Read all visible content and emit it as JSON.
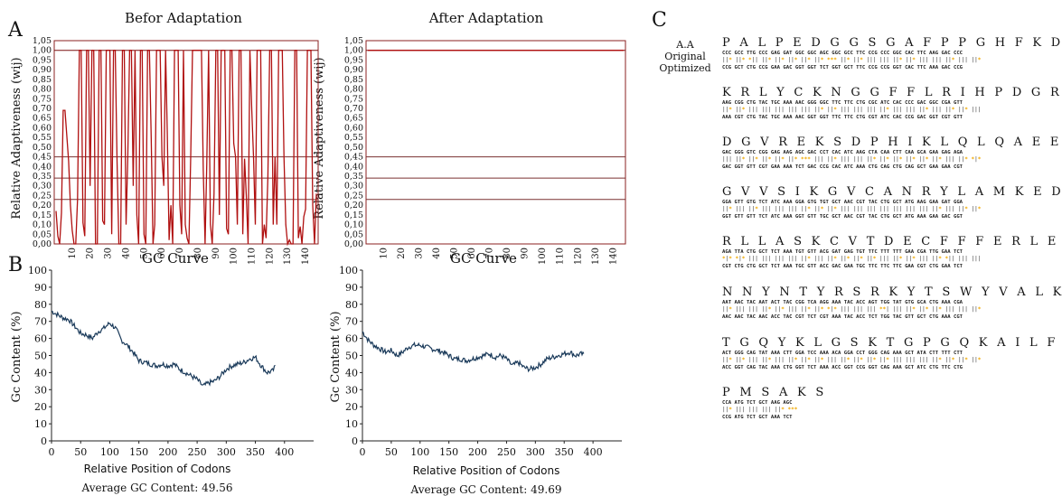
{
  "panels": {
    "A": {
      "letter": "A",
      "left_title": "Befor Adaptation",
      "right_title": "After Adaptation",
      "ylabel": "Relative Adaptiveness (wij)",
      "yticks": [
        "0,00",
        "0,05",
        "0,10",
        "0,15",
        "0,20",
        "0,25",
        "0,30",
        "0,35",
        "0,40",
        "0,45",
        "0,50",
        "0,55",
        "0,60",
        "0,65",
        "0,70",
        "0,75",
        "0,80",
        "0,85",
        "0,90",
        "0,95",
        "1,00",
        "1,05"
      ],
      "xticks": [
        "10",
        "20",
        "30",
        "40",
        "50",
        "60",
        "70",
        "80",
        "90",
        "100",
        "110",
        "120",
        "130",
        "140"
      ]
    },
    "B": {
      "letter": "B",
      "left_title": "GC Curve",
      "right_title": "GC Curve",
      "ylabel": "Gc Content (%)",
      "xlabel": "Relative Position of Codons",
      "yticks": [
        "0",
        "10",
        "20",
        "30",
        "40",
        "50",
        "60",
        "70",
        "80",
        "90",
        "100"
      ],
      "xticks": [
        "0",
        "50",
        "100",
        "150",
        "200",
        "250",
        "300",
        "350",
        "400"
      ],
      "left_average": "Average GC Content: 49.56",
      "right_average": "Average GC Content: 49.69"
    },
    "C": {
      "letter": "C",
      "row_labels": [
        "A.A",
        "Original",
        "Optimized"
      ],
      "blocks": [
        {
          "aa": "P A L P E D G G S G A F P P G H F K D P",
          "orig": "CCC GCC TTG CCC GAG GAT GGC GGC AGC GGC GCC TTC CCG CCC GGC CAC TTC AAG GAC CCC",
          "opt": "CCG GCT CTG CCG GAA GAC GGT GGT TCT GGT GCT TTC CCG CCG GGT CAC TTC AAA GAC CCG"
        },
        {
          "aa": "K R L Y C K N G G F F L R I H P D G R V",
          "orig": "AAG CGG CTG TAC TGC AAA AAC GGG GGC TTC TTC CTG CGC ATC CAC CCC GAC GGC CGA GTT",
          "opt": "AAA CGT CTG TAC TGC AAA AAC GGT GGT TTC TTC CTG CGT ATC CAC CCG GAC GGT CGT GTT"
        },
        {
          "aa": "D G V R E K S D P H I K L Q L Q A E E R",
          "orig": "GAC GGG GTC CGG GAG AAG AGC GAC CCT CAC ATC AAG CTA CAA CTT CAA GCA GAA GAG AGA",
          "opt": "GAC GGT GTT CGT GAA AAA TCT GAC CCG CAC ATC AAA CTG CAG CTG CAG GCT GAA GAA CGT"
        },
        {
          "aa": "G V V S I K G V C A N R Y L A M K E D G",
          "orig": "GGA GTT GTG TCT ATC AAA GGA GTG TGT GCT AAC CGT TAC CTG GCT ATG AAG GAA GAT GGA",
          "opt": "GGT GTT GTT TCT ATC AAA GGT GTT TGC GCT AAC CGT TAC CTG GCT ATG AAA GAA GAC GGT"
        },
        {
          "aa": "R L L A S K C V T D E C F F F E R L E S",
          "orig": "AGA TTA CTG GCT TCT AAA TGT GTT ACG GAT GAG TGT TTC TTT TTT GAA CGA TTG GAA TCT",
          "opt": "CGT CTG CTG GCT TCT AAA TGC GTT ACC GAC GAA TGC TTC TTC TTC GAA CGT CTG GAA TCT"
        },
        {
          "aa": "N N Y N T Y R S R K Y T S W Y V A L K R",
          "orig": "AAT AAC TAC AAT ACT TAC CGG TCA AGG AAA TAC ACC AGT TGG TAT GTG GCA CTG AAA CGA",
          "opt": "AAC AAC TAC AAC ACC TAC CGT TCT CGT AAA TAC ACC TCT TGG TAC GTT GCT CTG AAA CGT"
        },
        {
          "aa": "T G Q Y K L G S K T G P G Q K A I L F L",
          "orig": "ACT GGG CAG TAT AAA CTT GGA TCC AAA ACA GGA CCT GGG CAG AAA GCT ATA CTT TTT CTT",
          "opt": "ACC GGT CAG TAC AAA CTG GGT TCT AAA ACC GGT CCG GGT CAG AAA GCT ATC CTG TTC CTG"
        },
        {
          "aa": "P M S A K S",
          "orig": "CCA ATG TCT GCT AAG AGC",
          "opt": "CCG ATG TCT GCT AAA TCT"
        }
      ]
    }
  },
  "chart_data": [
    {
      "type": "line",
      "title": "Befor Adaptation",
      "ylabel": "Relative Adaptiveness (wij)",
      "ylim": [
        0,
        1.05
      ],
      "xlim": [
        1,
        146
      ],
      "color": "#b01010",
      "reference_lines": [
        1.0,
        0.45,
        0.34,
        0.23
      ],
      "series": [
        {
          "values": [
            0.17,
            0.04,
            0.0,
            0.16,
            0.69,
            0.69,
            0.56,
            0.43,
            0.2,
            0.07,
            0.0,
            0.0,
            0.23,
            1.0,
            1.0,
            0.11,
            0.04,
            1.0,
            1.0,
            0.3,
            1.0,
            1.0,
            0.0,
            0.0,
            1.0,
            1.0,
            0.12,
            0.1,
            1.0,
            1.0,
            1.0,
            0.05,
            1.0,
            1.0,
            0.43,
            0.0,
            0.0,
            1.0,
            1.0,
            0.1,
            0.45,
            1.0,
            1.0,
            0.3,
            1.0,
            0.15,
            0.0,
            1.0,
            1.0,
            0.05,
            0.0,
            1.0,
            1.0,
            0.55,
            0.0,
            0.1,
            1.0,
            1.0,
            1.0,
            0.45,
            0.3,
            1.0,
            0.57,
            0.02,
            0.2,
            0.0,
            1.0,
            1.0,
            1.0,
            0.2,
            0.05,
            1.0,
            0.1,
            0.03,
            0.0,
            0.45,
            1.0,
            1.0,
            1.0,
            1.0,
            1.0,
            1.0,
            0.38,
            0.0,
            0.42,
            1.0,
            0.1,
            0.0,
            0.26,
            1.0,
            1.0,
            0.15,
            1.0,
            1.0,
            1.0,
            0.08,
            0.05,
            1.0,
            1.0,
            0.52,
            0.45,
            0.1,
            1.0,
            1.0,
            0.05,
            0.44,
            0.25,
            0.0,
            1.0,
            0.7,
            0.45,
            0.1,
            1.0,
            1.0,
            1.0,
            0.0,
            0.1,
            0.03,
            0.35,
            1.0,
            1.0,
            0.1,
            0.45,
            0.1,
            1.0,
            1.0,
            1.0,
            0.45,
            0.1,
            0.0,
            0.02,
            0.0,
            0.0,
            1.0,
            1.0,
            0.03,
            0.09,
            0.0,
            0.14,
            0.18,
            1.0,
            1.0,
            1.0,
            0.2,
            0.0,
            0.26
          ]
        }
      ]
    },
    {
      "type": "line",
      "title": "After Adaptation",
      "ylim": [
        0,
        1.05
      ],
      "reference_lines": [
        1.0,
        0.45,
        0.34,
        0.23
      ],
      "series": [
        {
          "values": "all 1.00"
        }
      ]
    },
    {
      "type": "line",
      "title": "GC Curve",
      "xlabel": "Relative Position of Codons",
      "ylabel": "Gc Content (%)",
      "xlim": [
        0,
        450
      ],
      "ylim": [
        0,
        100
      ],
      "color": "#1a3a5a",
      "series": [
        {
          "x": [
            0,
            10,
            20,
            30,
            40,
            50,
            60,
            70,
            80,
            90,
            100,
            110,
            120,
            130,
            140,
            150,
            160,
            170,
            180,
            190,
            200,
            210,
            220,
            230,
            240,
            250,
            260,
            270,
            280,
            290,
            300,
            310,
            320,
            330,
            340,
            350,
            360,
            370,
            380,
            385
          ],
          "values": [
            76,
            74,
            72,
            71,
            67,
            63,
            62,
            60,
            64,
            66,
            69,
            66,
            59,
            56,
            52,
            47,
            46,
            45,
            44,
            45,
            44,
            45,
            42,
            40,
            38,
            36,
            32,
            34,
            35,
            38,
            42,
            44,
            45,
            46,
            48,
            49,
            44,
            40,
            41,
            44
          ]
        }
      ]
    },
    {
      "type": "line",
      "title": "GC Curve",
      "xlabel": "Relative Position of Codons",
      "ylabel": "Gc Content (%)",
      "xlim": [
        0,
        450
      ],
      "ylim": [
        0,
        100
      ],
      "color": "#1a3a5a",
      "series": [
        {
          "x": [
            0,
            10,
            20,
            30,
            40,
            50,
            60,
            70,
            80,
            90,
            100,
            110,
            120,
            130,
            140,
            150,
            160,
            170,
            180,
            190,
            200,
            210,
            220,
            230,
            240,
            250,
            260,
            270,
            280,
            290,
            300,
            310,
            320,
            330,
            340,
            350,
            360,
            370,
            380,
            385
          ],
          "values": [
            64,
            59,
            56,
            54,
            52,
            53,
            50,
            52,
            55,
            56,
            56,
            55,
            54,
            53,
            52,
            50,
            48,
            48,
            47,
            48,
            49,
            50,
            51,
            49,
            50,
            48,
            44,
            46,
            43,
            42,
            43,
            45,
            48,
            49,
            50,
            51,
            52,
            50,
            51,
            50
          ]
        }
      ]
    }
  ]
}
